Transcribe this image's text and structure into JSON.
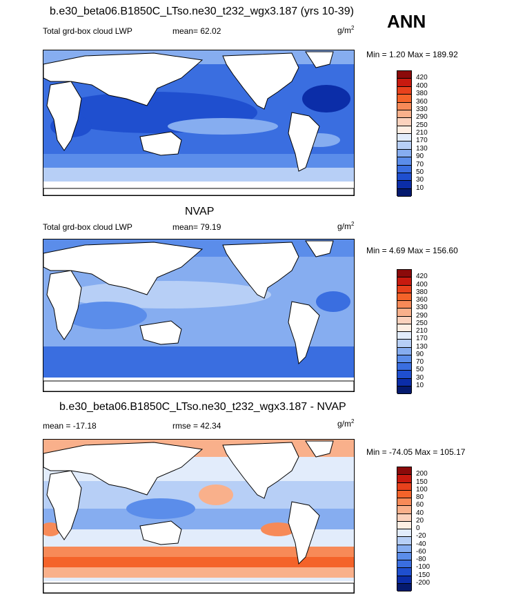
{
  "season": "ANN",
  "panels": [
    {
      "id": "model",
      "title": "b.e30_beta06.B1850C_LTso.ne30_t232_wgx3.187 (yrs 10-39)",
      "left_label": "Total grd-box cloud LWP",
      "center_label": "mean=  62.02",
      "units": "g/m",
      "units_sup": "2",
      "minmax": "Min =   1.20 Max = 189.92",
      "levels": [
        "420",
        "400",
        "380",
        "360",
        "330",
        "290",
        "250",
        "210",
        "170",
        "130",
        "90",
        "70",
        "50",
        "30",
        "10"
      ],
      "colors": [
        "#8b0a0a",
        "#c81a0f",
        "#e8411c",
        "#f4632a",
        "#f78a58",
        "#f9b08b",
        "#fbd2bd",
        "#fdeee3",
        "#e2ecfb",
        "#b7cff6",
        "#86adf0",
        "#5b8dea",
        "#3a6ee0",
        "#1f4fcf",
        "#0b2da8",
        "#051a6e"
      ]
    },
    {
      "id": "obs",
      "title": "NVAP",
      "left_label": "Total grd-box cloud LWP",
      "center_label": "mean=  79.19",
      "units": "g/m",
      "units_sup": "2",
      "minmax": "Min =   4.69 Max = 156.60",
      "levels": [
        "420",
        "400",
        "380",
        "360",
        "330",
        "290",
        "250",
        "210",
        "170",
        "130",
        "90",
        "70",
        "50",
        "30",
        "10"
      ],
      "colors": [
        "#8b0a0a",
        "#c81a0f",
        "#e8411c",
        "#f4632a",
        "#f78a58",
        "#f9b08b",
        "#fbd2bd",
        "#fdeee3",
        "#e2ecfb",
        "#b7cff6",
        "#86adf0",
        "#5b8dea",
        "#3a6ee0",
        "#1f4fcf",
        "#0b2da8",
        "#051a6e"
      ]
    },
    {
      "id": "diff",
      "title": "b.e30_beta06.B1850C_LTso.ne30_t232_wgx3.187 - NVAP",
      "left_label": "mean = -17.18",
      "center_label": "rmse =  42.34",
      "units": "g/m",
      "units_sup": "2",
      "minmax": "Min = -74.05 Max = 105.17",
      "levels": [
        "200",
        "150",
        "100",
        "80",
        "60",
        "40",
        "20",
        "0",
        "-20",
        "-40",
        "-60",
        "-80",
        "-100",
        "-150",
        "-200"
      ],
      "colors": [
        "#8b0a0a",
        "#c81a0f",
        "#e8411c",
        "#f4632a",
        "#f78a58",
        "#f9b08b",
        "#fbd2bd",
        "#fdeee3",
        "#e2ecfb",
        "#b7cff6",
        "#86adf0",
        "#5b8dea",
        "#3a6ee0",
        "#1f4fcf",
        "#0b2da8",
        "#051a6e"
      ]
    }
  ]
}
